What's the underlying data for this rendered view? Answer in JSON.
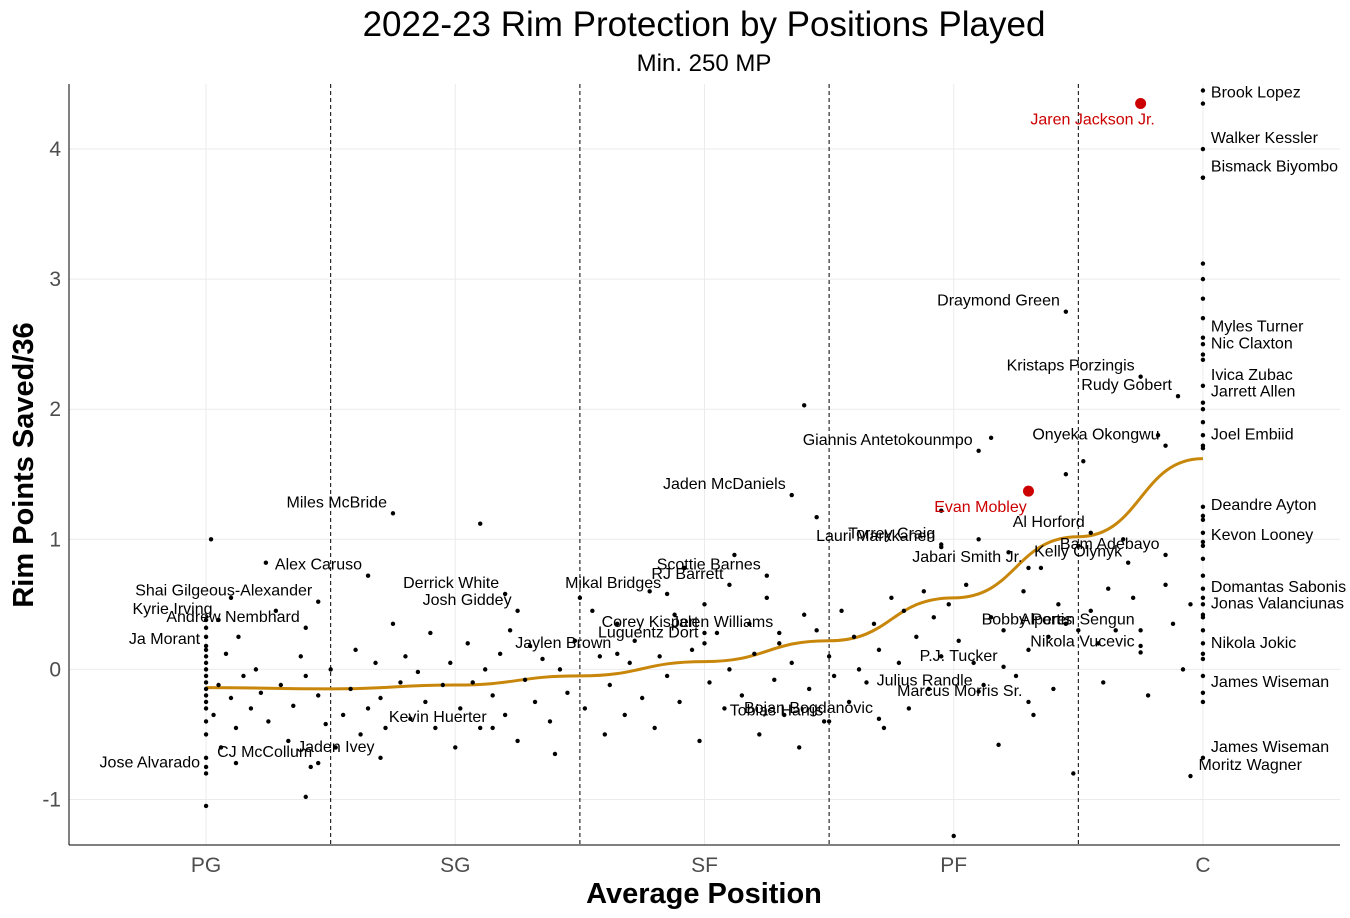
{
  "chart_data": {
    "type": "scatter",
    "title": "2022-23 Rim Protection by Positions Played",
    "subtitle": "Min. 250 MP",
    "xlabel": "Average Position",
    "ylabel": "Rim Points Saved/36",
    "x_categories": [
      "PG",
      "SG",
      "SF",
      "PF",
      "C"
    ],
    "xlim": [
      0.45,
      5.55
    ],
    "ylim": [
      -1.35,
      4.5
    ],
    "y_ticks": [
      -1,
      0,
      1,
      2,
      3,
      4
    ],
    "position_dividers": [
      1.5,
      2.5,
      3.5,
      4.5
    ],
    "colors": {
      "points": "#000000",
      "highlight": "#cc0000",
      "trend": "#c8860a"
    },
    "trend": [
      {
        "x": 1.0,
        "y": -0.14
      },
      {
        "x": 1.5,
        "y": -0.15
      },
      {
        "x": 2.0,
        "y": -0.12
      },
      {
        "x": 2.5,
        "y": -0.05
      },
      {
        "x": 3.0,
        "y": 0.06
      },
      {
        "x": 3.5,
        "y": 0.22
      },
      {
        "x": 4.0,
        "y": 0.55
      },
      {
        "x": 4.5,
        "y": 1.02
      },
      {
        "x": 5.0,
        "y": 1.62
      }
    ],
    "highlighted": [
      {
        "name": "Jaren Jackson Jr.",
        "x": 4.75,
        "y": 4.35
      },
      {
        "name": "Evan Mobley",
        "x": 4.3,
        "y": 1.37
      }
    ],
    "labeled": [
      {
        "name": "Brook Lopez",
        "x": 5.0,
        "y": 4.35
      },
      {
        "name": "Walker Kessler",
        "x": 5.0,
        "y": 4.0
      },
      {
        "name": "Bismack Biyombo",
        "x": 5.0,
        "y": 3.78
      },
      {
        "name": "Myles Turner",
        "x": 5.0,
        "y": 2.55
      },
      {
        "name": "Nic Claxton",
        "x": 5.0,
        "y": 2.42
      },
      {
        "name": "Ivica Zubac",
        "x": 5.0,
        "y": 2.18
      },
      {
        "name": "Jarrett Allen",
        "x": 5.0,
        "y": 2.05
      },
      {
        "name": "Joel Embiid",
        "x": 5.0,
        "y": 1.72
      },
      {
        "name": "Deandre Ayton",
        "x": 5.0,
        "y": 1.18
      },
      {
        "name": "Kevon Looney",
        "x": 5.0,
        "y": 0.95
      },
      {
        "name": "Domantas Sabonis",
        "x": 5.0,
        "y": 0.55
      },
      {
        "name": "Jonas Valanciunas",
        "x": 5.0,
        "y": 0.42
      },
      {
        "name": "Nikola Jokic",
        "x": 5.0,
        "y": 0.12
      },
      {
        "name": "James Wiseman",
        "x": 5.0,
        "y": -0.18
      },
      {
        "name": "James Wiseman",
        "x": 5.0,
        "y": -0.68
      },
      {
        "name": "Moritz Wagner",
        "x": 4.95,
        "y": -0.82
      },
      {
        "name": "Draymond Green",
        "x": 4.45,
        "y": 2.75
      },
      {
        "name": "Kristaps Porzingis",
        "x": 4.75,
        "y": 2.25
      },
      {
        "name": "Rudy Gobert",
        "x": 4.9,
        "y": 2.1
      },
      {
        "name": "Onyeka Okongwu",
        "x": 4.85,
        "y": 1.72
      },
      {
        "name": "Giannis Antetokounmpo",
        "x": 4.1,
        "y": 1.68
      },
      {
        "name": "Jaden McDaniels",
        "x": 3.35,
        "y": 1.34
      },
      {
        "name": "Lauri Markkanen",
        "x": 3.95,
        "y": 0.94
      },
      {
        "name": "Torrey Craig",
        "x": 3.95,
        "y": 0.96
      },
      {
        "name": "Al Horford",
        "x": 4.55,
        "y": 1.05
      },
      {
        "name": "Bam Adebayo",
        "x": 4.85,
        "y": 0.88
      },
      {
        "name": "Jabari Smith Jr.",
        "x": 4.3,
        "y": 0.78
      },
      {
        "name": "Kelly Olynyk",
        "x": 4.7,
        "y": 0.82
      },
      {
        "name": "Alperen Sengun",
        "x": 4.75,
        "y": 0.3
      },
      {
        "name": "Bobby Portis",
        "x": 4.5,
        "y": 0.3
      },
      {
        "name": "Nikola Vucevic",
        "x": 4.75,
        "y": 0.13
      },
      {
        "name": "P.J. Tucker",
        "x": 4.2,
        "y": 0.02
      },
      {
        "name": "Julius Randle",
        "x": 4.1,
        "y": -0.17
      },
      {
        "name": "Marcus Morris Sr.",
        "x": 4.3,
        "y": -0.25
      },
      {
        "name": "Tobias Harris",
        "x": 3.5,
        "y": -0.4
      },
      {
        "name": "Bojan Bogdanovic",
        "x": 3.7,
        "y": -0.38
      },
      {
        "name": "Scottie Barnes",
        "x": 3.25,
        "y": 0.72
      },
      {
        "name": "RJ Barrett",
        "x": 3.1,
        "y": 0.65
      },
      {
        "name": "Mikal Bridges",
        "x": 2.85,
        "y": 0.58
      },
      {
        "name": "Corey Kispert",
        "x": 3.0,
        "y": 0.28
      },
      {
        "name": "Jalen Williams",
        "x": 3.3,
        "y": 0.28
      },
      {
        "name": "Luguentz Dort",
        "x": 3.0,
        "y": 0.2
      },
      {
        "name": "Jaylen Brown",
        "x": 2.65,
        "y": 0.12
      },
      {
        "name": "Miles McBride",
        "x": 1.75,
        "y": 1.2
      },
      {
        "name": "Alex Caruso",
        "x": 1.65,
        "y": 0.72
      },
      {
        "name": "Derrick White",
        "x": 2.2,
        "y": 0.58
      },
      {
        "name": "Shai Gilgeous-Alexander",
        "x": 1.45,
        "y": 0.52
      },
      {
        "name": "Josh Giddey",
        "x": 2.25,
        "y": 0.45
      },
      {
        "name": "Andrew Nembhard",
        "x": 1.4,
        "y": 0.32
      },
      {
        "name": "Kyrie Irving",
        "x": 1.05,
        "y": 0.38
      },
      {
        "name": "Ja Morant",
        "x": 1.0,
        "y": 0.15
      },
      {
        "name": "Kevin Huerter",
        "x": 2.15,
        "y": -0.45
      },
      {
        "name": "CJ McCollum",
        "x": 1.45,
        "y": -0.72
      },
      {
        "name": "Jaden Ivey",
        "x": 1.7,
        "y": -0.68
      },
      {
        "name": "Jose Alvarado",
        "x": 1.0,
        "y": -0.8
      }
    ],
    "points": [
      {
        "x": 1,
        "y": -1.05
      },
      {
        "x": 1,
        "y": -0.75
      },
      {
        "x": 1,
        "y": -0.68
      },
      {
        "x": 1,
        "y": -0.5
      },
      {
        "x": 1,
        "y": -0.4
      },
      {
        "x": 1,
        "y": -0.3
      },
      {
        "x": 1,
        "y": -0.25
      },
      {
        "x": 1,
        "y": -0.2
      },
      {
        "x": 1,
        "y": -0.15
      },
      {
        "x": 1,
        "y": -0.1
      },
      {
        "x": 1,
        "y": -0.05
      },
      {
        "x": 1,
        "y": 0.0
      },
      {
        "x": 1,
        "y": 0.05
      },
      {
        "x": 1,
        "y": 0.1
      },
      {
        "x": 1,
        "y": 0.18
      },
      {
        "x": 1,
        "y": 0.25
      },
      {
        "x": 1,
        "y": 0.32
      },
      {
        "x": 1,
        "y": 0.38
      },
      {
        "x": 1.02,
        "y": 1.0
      },
      {
        "x": 1.03,
        "y": -0.35
      },
      {
        "x": 1.05,
        "y": -0.12
      },
      {
        "x": 1.06,
        "y": -0.6
      },
      {
        "x": 1.08,
        "y": 0.12
      },
      {
        "x": 1.1,
        "y": -0.22
      },
      {
        "x": 1.12,
        "y": -0.45
      },
      {
        "x": 1.1,
        "y": 0.55
      },
      {
        "x": 1.13,
        "y": 0.25
      },
      {
        "x": 1.15,
        "y": -0.05
      },
      {
        "x": 1.18,
        "y": -0.3
      },
      {
        "x": 1.12,
        "y": -0.72
      },
      {
        "x": 1.2,
        "y": 0.0
      },
      {
        "x": 1.22,
        "y": -0.18
      },
      {
        "x": 1.25,
        "y": -0.4
      },
      {
        "x": 1.24,
        "y": 0.82
      },
      {
        "x": 1.28,
        "y": 0.45
      },
      {
        "x": 1.3,
        "y": -0.12
      },
      {
        "x": 1.33,
        "y": -0.55
      },
      {
        "x": 1.35,
        "y": -0.28
      },
      {
        "x": 1.38,
        "y": 0.1
      },
      {
        "x": 1.4,
        "y": -0.05
      },
      {
        "x": 1.42,
        "y": -0.75
      },
      {
        "x": 1.45,
        "y": -0.2
      },
      {
        "x": 1.48,
        "y": -0.42
      },
      {
        "x": 1.5,
        "y": 0.0
      },
      {
        "x": 1.52,
        "y": -0.6
      },
      {
        "x": 1.55,
        "y": -0.35
      },
      {
        "x": 1.58,
        "y": -0.15
      },
      {
        "x": 1.4,
        "y": -0.98
      },
      {
        "x": 1.6,
        "y": 0.15
      },
      {
        "x": 1.62,
        "y": -0.5
      },
      {
        "x": 1.65,
        "y": -0.3
      },
      {
        "x": 1.68,
        "y": 0.05
      },
      {
        "x": 1.7,
        "y": -0.22
      },
      {
        "x": 1.72,
        "y": -0.45
      },
      {
        "x": 1.75,
        "y": 0.35
      },
      {
        "x": 1.78,
        "y": -0.1
      },
      {
        "x": 1.8,
        "y": 0.1
      },
      {
        "x": 1.82,
        "y": -0.38
      },
      {
        "x": 1.85,
        "y": -0.02
      },
      {
        "x": 1.88,
        "y": -0.25
      },
      {
        "x": 1.9,
        "y": 0.28
      },
      {
        "x": 1.92,
        "y": -0.45
      },
      {
        "x": 1.95,
        "y": -0.12
      },
      {
        "x": 1.98,
        "y": 0.05
      },
      {
        "x": 2.0,
        "y": -0.6
      },
      {
        "x": 2.02,
        "y": -0.3
      },
      {
        "x": 2.05,
        "y": 0.2
      },
      {
        "x": 2.07,
        "y": -0.1
      },
      {
        "x": 2.1,
        "y": 1.12
      },
      {
        "x": 2.1,
        "y": -0.45
      },
      {
        "x": 2.12,
        "y": 0.0
      },
      {
        "x": 2.15,
        "y": -0.2
      },
      {
        "x": 2.18,
        "y": 0.12
      },
      {
        "x": 2.2,
        "y": -0.35
      },
      {
        "x": 2.22,
        "y": 0.3
      },
      {
        "x": 2.25,
        "y": -0.55
      },
      {
        "x": 2.28,
        "y": -0.08
      },
      {
        "x": 2.3,
        "y": 0.18
      },
      {
        "x": 2.32,
        "y": -0.25
      },
      {
        "x": 2.35,
        "y": 0.08
      },
      {
        "x": 2.38,
        "y": -0.4
      },
      {
        "x": 2.4,
        "y": -0.65
      },
      {
        "x": 2.42,
        "y": 0.0
      },
      {
        "x": 2.45,
        "y": -0.18
      },
      {
        "x": 2.48,
        "y": 0.22
      },
      {
        "x": 2.5,
        "y": 0.55
      },
      {
        "x": 2.52,
        "y": -0.3
      },
      {
        "x": 2.55,
        "y": 0.45
      },
      {
        "x": 2.58,
        "y": 0.1
      },
      {
        "x": 2.6,
        "y": -0.5
      },
      {
        "x": 2.62,
        "y": -0.12
      },
      {
        "x": 2.65,
        "y": 0.35
      },
      {
        "x": 2.68,
        "y": -0.35
      },
      {
        "x": 2.7,
        "y": 0.05
      },
      {
        "x": 2.72,
        "y": 0.22
      },
      {
        "x": 2.75,
        "y": -0.22
      },
      {
        "x": 2.78,
        "y": 0.6
      },
      {
        "x": 2.8,
        "y": -0.45
      },
      {
        "x": 2.82,
        "y": 0.1
      },
      {
        "x": 2.85,
        "y": -0.05
      },
      {
        "x": 2.88,
        "y": 0.42
      },
      {
        "x": 2.9,
        "y": -0.25
      },
      {
        "x": 2.92,
        "y": 0.78
      },
      {
        "x": 2.95,
        "y": 0.15
      },
      {
        "x": 2.98,
        "y": -0.55
      },
      {
        "x": 3.0,
        "y": 0.5
      },
      {
        "x": 3.02,
        "y": -0.1
      },
      {
        "x": 3.05,
        "y": 0.28
      },
      {
        "x": 3.08,
        "y": -0.3
      },
      {
        "x": 3.1,
        "y": 0.0
      },
      {
        "x": 3.12,
        "y": 0.88
      },
      {
        "x": 3.15,
        "y": -0.2
      },
      {
        "x": 3.18,
        "y": 0.35
      },
      {
        "x": 3.2,
        "y": 0.12
      },
      {
        "x": 3.22,
        "y": -0.5
      },
      {
        "x": 3.25,
        "y": 0.55
      },
      {
        "x": 3.28,
        "y": -0.08
      },
      {
        "x": 3.3,
        "y": 0.2
      },
      {
        "x": 3.32,
        "y": -0.35
      },
      {
        "x": 3.35,
        "y": 0.05
      },
      {
        "x": 3.38,
        "y": -0.6
      },
      {
        "x": 3.4,
        "y": 2.03
      },
      {
        "x": 3.4,
        "y": 0.42
      },
      {
        "x": 3.42,
        "y": -0.15
      },
      {
        "x": 3.45,
        "y": 1.17
      },
      {
        "x": 3.45,
        "y": 0.3
      },
      {
        "x": 3.48,
        "y": -0.4
      },
      {
        "x": 3.5,
        "y": 0.1
      },
      {
        "x": 3.52,
        "y": -0.05
      },
      {
        "x": 3.55,
        "y": 0.45
      },
      {
        "x": 3.58,
        "y": -0.25
      },
      {
        "x": 3.6,
        "y": 0.25
      },
      {
        "x": 3.62,
        "y": 0.0
      },
      {
        "x": 3.65,
        "y": -0.1
      },
      {
        "x": 3.68,
        "y": 0.35
      },
      {
        "x": 3.7,
        "y": 0.15
      },
      {
        "x": 3.72,
        "y": -0.45
      },
      {
        "x": 3.75,
        "y": 0.55
      },
      {
        "x": 3.78,
        "y": 0.05
      },
      {
        "x": 3.8,
        "y": 0.45
      },
      {
        "x": 3.82,
        "y": -0.3
      },
      {
        "x": 3.85,
        "y": 0.25
      },
      {
        "x": 3.88,
        "y": 0.6
      },
      {
        "x": 3.9,
        "y": -0.15
      },
      {
        "x": 3.92,
        "y": 0.4
      },
      {
        "x": 3.95,
        "y": 1.22
      },
      {
        "x": 3.95,
        "y": 0.1
      },
      {
        "x": 3.98,
        "y": 0.5
      },
      {
        "x": 4.0,
        "y": -1.28
      },
      {
        "x": 4.02,
        "y": 0.22
      },
      {
        "x": 4.05,
        "y": 0.65
      },
      {
        "x": 4.08,
        "y": 0.05
      },
      {
        "x": 4.1,
        "y": 1.0
      },
      {
        "x": 4.12,
        "y": -0.12
      },
      {
        "x": 4.15,
        "y": 1.78
      },
      {
        "x": 4.15,
        "y": 0.4
      },
      {
        "x": 4.18,
        "y": -0.58
      },
      {
        "x": 4.2,
        "y": 0.3
      },
      {
        "x": 4.22,
        "y": 0.9
      },
      {
        "x": 4.25,
        "y": -0.05
      },
      {
        "x": 4.28,
        "y": 0.6
      },
      {
        "x": 4.3,
        "y": 0.15
      },
      {
        "x": 4.32,
        "y": -0.35
      },
      {
        "x": 4.35,
        "y": 0.78
      },
      {
        "x": 4.38,
        "y": 0.25
      },
      {
        "x": 4.4,
        "y": -0.15
      },
      {
        "x": 4.42,
        "y": 0.5
      },
      {
        "x": 4.45,
        "y": 1.5
      },
      {
        "x": 4.45,
        "y": 0.35
      },
      {
        "x": 4.48,
        "y": -0.8
      },
      {
        "x": 4.5,
        "y": 0.95
      },
      {
        "x": 4.52,
        "y": 1.6
      },
      {
        "x": 4.55,
        "y": 0.45
      },
      {
        "x": 4.58,
        "y": 0.2
      },
      {
        "x": 4.6,
        "y": -0.1
      },
      {
        "x": 4.62,
        "y": 0.62
      },
      {
        "x": 4.65,
        "y": 0.3
      },
      {
        "x": 4.68,
        "y": 1.0
      },
      {
        "x": 4.72,
        "y": 0.55
      },
      {
        "x": 4.75,
        "y": 0.18
      },
      {
        "x": 4.78,
        "y": -0.2
      },
      {
        "x": 4.82,
        "y": 1.8
      },
      {
        "x": 4.85,
        "y": 0.65
      },
      {
        "x": 4.88,
        "y": 0.35
      },
      {
        "x": 4.92,
        "y": 0.0
      },
      {
        "x": 4.95,
        "y": 0.5
      },
      {
        "x": 5,
        "y": 4.45
      },
      {
        "x": 5,
        "y": 3.78
      },
      {
        "x": 5,
        "y": 3.12
      },
      {
        "x": 5,
        "y": 3.0
      },
      {
        "x": 5,
        "y": 2.85
      },
      {
        "x": 5,
        "y": 2.7
      },
      {
        "x": 5,
        "y": 2.5
      },
      {
        "x": 5,
        "y": 2.38
      },
      {
        "x": 5,
        "y": 2.0
      },
      {
        "x": 5,
        "y": 1.9
      },
      {
        "x": 5,
        "y": 1.8
      },
      {
        "x": 5,
        "y": 1.7
      },
      {
        "x": 5,
        "y": 1.25
      },
      {
        "x": 5,
        "y": 1.15
      },
      {
        "x": 5,
        "y": 1.05
      },
      {
        "x": 5,
        "y": 0.98
      },
      {
        "x": 5,
        "y": 0.85
      },
      {
        "x": 5,
        "y": 0.72
      },
      {
        "x": 5,
        "y": 0.62
      },
      {
        "x": 5,
        "y": 0.5
      },
      {
        "x": 5,
        "y": 0.4
      },
      {
        "x": 5,
        "y": 0.3
      },
      {
        "x": 5,
        "y": 0.2
      },
      {
        "x": 5,
        "y": 0.08
      },
      {
        "x": 5,
        "y": -0.05
      },
      {
        "x": 5,
        "y": -0.25
      }
    ]
  }
}
